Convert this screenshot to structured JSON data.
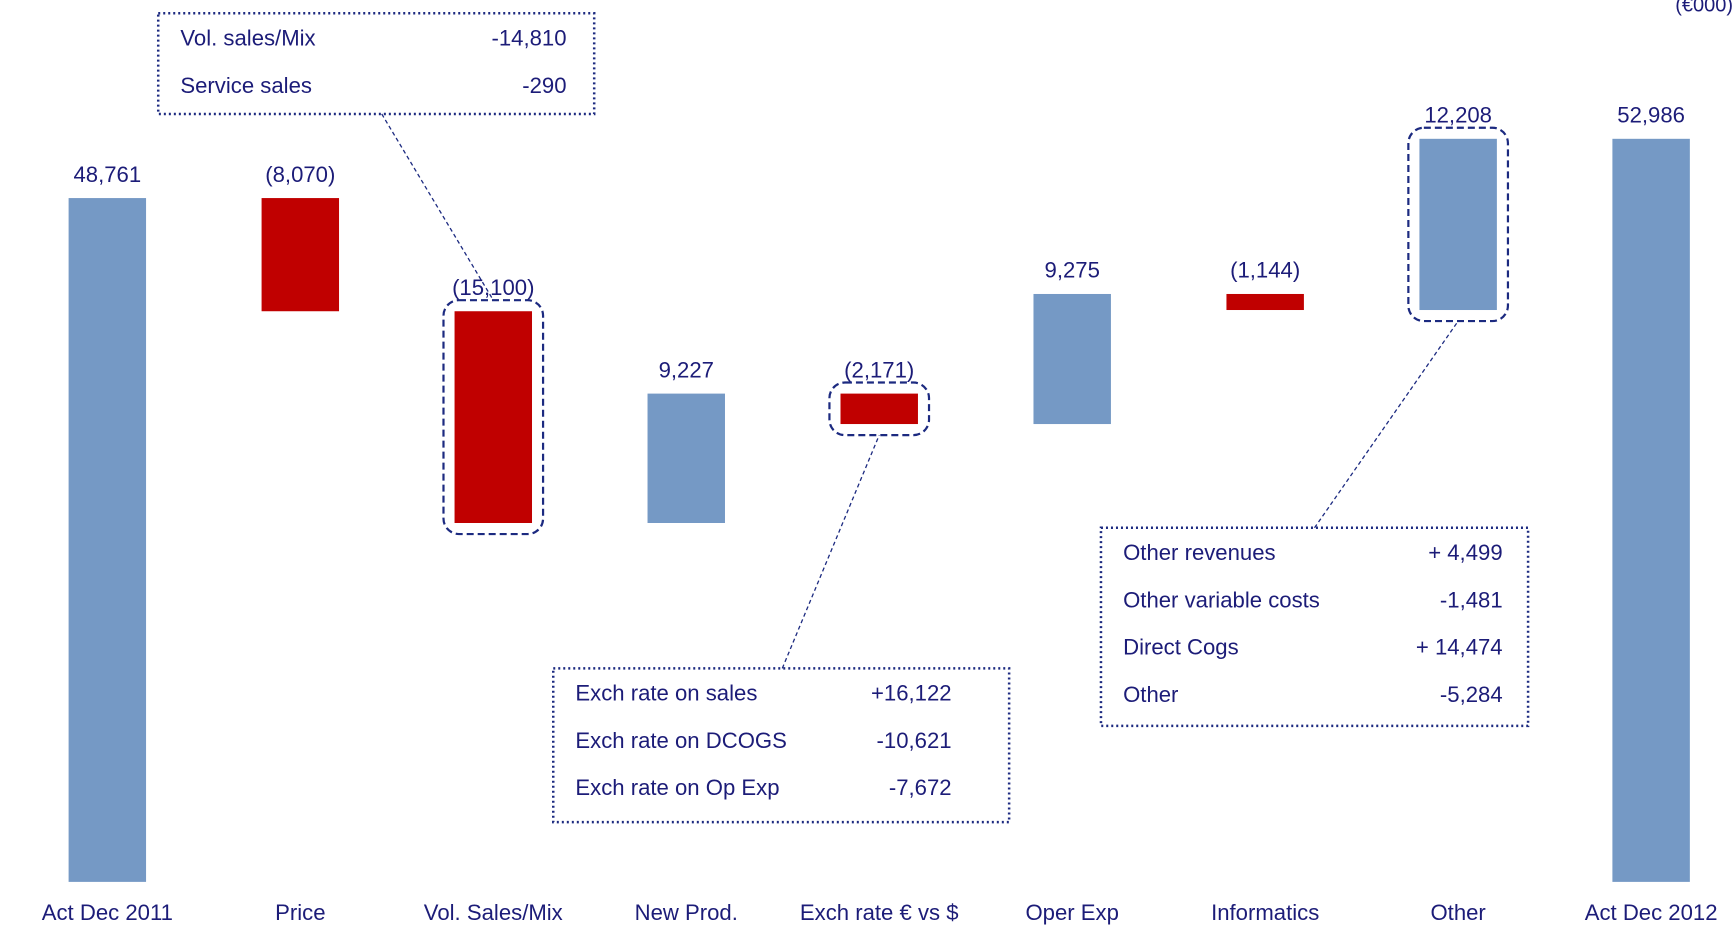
{
  "chart_data": {
    "type": "waterfall",
    "unit": "(€000)",
    "categories": [
      "Act Dec 2011",
      "Price",
      "Vol. Sales/Mix",
      "New Prod.",
      "Exch rate € vs $",
      "Oper Exp",
      "Informatics",
      "Other",
      "Act Dec 2012"
    ],
    "values": [
      48761,
      -8070,
      -15100,
      9227,
      -2171,
      9275,
      -1144,
      12208,
      52986
    ],
    "value_labels": [
      "48,761",
      "(8,070)",
      "(15,100)",
      "9,227",
      "(2,171)",
      "9,275",
      "(1,144)",
      "12,208",
      "52,986"
    ],
    "colors": {
      "total": "#7599c5",
      "increase": "#7599c5",
      "decrease": "#c00000"
    },
    "annotations": [
      {
        "rows": [
          [
            "Vol. sales/Mix",
            "-14,810"
          ],
          [
            "Service sales",
            "-290"
          ]
        ]
      },
      {
        "rows": [
          [
            "Exch rate on sales",
            "+16,122"
          ],
          [
            "Exch rate on DCOGS",
            "-10,621"
          ],
          [
            "Exch rate on Op Exp",
            "-7,672"
          ]
        ]
      },
      {
        "rows": [
          [
            "Other revenues",
            "+ 4,499"
          ],
          [
            "Other variable costs",
            "-1,481"
          ],
          [
            "Direct Cogs",
            "+ 14,474"
          ],
          [
            "Other",
            "-5,284"
          ]
        ]
      }
    ]
  }
}
